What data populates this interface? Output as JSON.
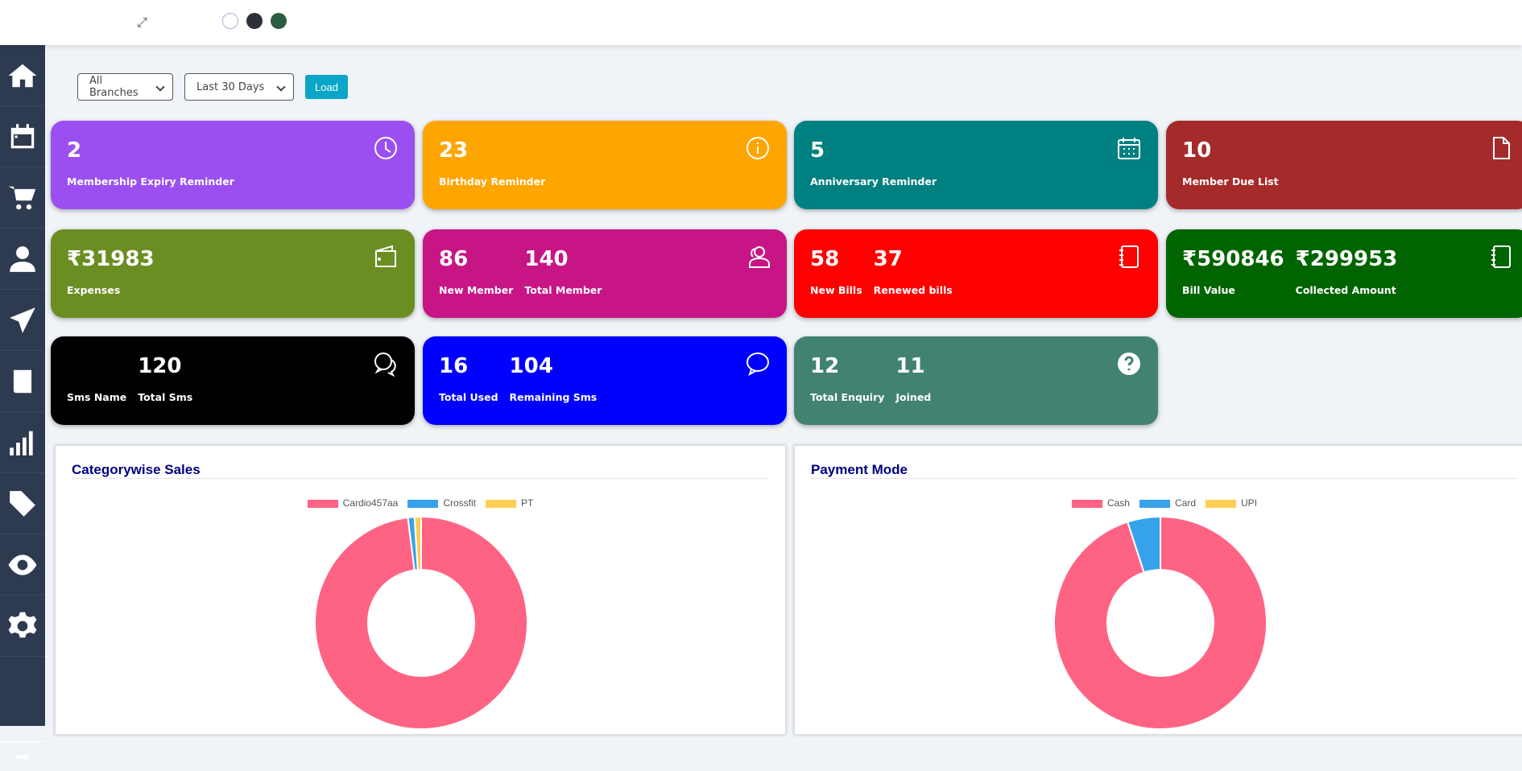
{
  "topbar": {
    "expand_icon": "expand-icon",
    "themes": [
      "#ffffff",
      "#2d3039",
      "#2a5c3f"
    ]
  },
  "sidebar": {
    "items": [
      "home-icon",
      "calendar-icon",
      "cart-icon",
      "user-icon",
      "send-icon",
      "book-icon",
      "bar-chart-icon",
      "tags-icon",
      "eye-icon",
      "gear-icon"
    ],
    "footer_icon": "arrow-right-icon"
  },
  "filters": {
    "branch": "All Branches",
    "period": "Last 30 Days",
    "load": "Load"
  },
  "cards": [
    {
      "color": "#9b4ff0",
      "icon": "clock-icon",
      "items": [
        {
          "value": "2",
          "label": "Membership Expiry Reminder"
        }
      ]
    },
    {
      "color": "#ffa500",
      "icon": "info-icon",
      "items": [
        {
          "value": "23",
          "label": "Birthday Reminder"
        }
      ]
    },
    {
      "color": "#008080",
      "icon": "calendar-icon",
      "items": [
        {
          "value": "5",
          "label": "Anniversary Reminder"
        }
      ]
    },
    {
      "color": "#a52a2a",
      "icon": "file-icon",
      "items": [
        {
          "value": "10",
          "label": "Member Due List"
        }
      ]
    },
    {
      "color": "#6b8e23",
      "icon": "wallet-icon",
      "items": [
        {
          "value": "₹31983",
          "label": "Expenses"
        }
      ]
    },
    {
      "color": "#c71585",
      "icon": "users-icon",
      "items": [
        {
          "value": "86",
          "label": "New Member"
        },
        {
          "value": "140",
          "label": "Total Member"
        }
      ]
    },
    {
      "color": "#ff0000",
      "icon": "notebook-icon",
      "items": [
        {
          "value": "58",
          "label": "New Bills"
        },
        {
          "value": "37",
          "label": "Renewed bills"
        }
      ]
    },
    {
      "color": "#006400",
      "icon": "notebook-icon",
      "items": [
        {
          "value": "₹590846",
          "label": "Bill Value"
        },
        {
          "value": "₹299953",
          "label": "Collected Amount"
        }
      ]
    },
    {
      "color": "#000000",
      "icon": "chat-icon",
      "items": [
        {
          "value": "",
          "label": "Sms Name"
        },
        {
          "value": "120",
          "label": "Total Sms"
        }
      ]
    },
    {
      "color": "#0000ff",
      "icon": "comment-icon",
      "items": [
        {
          "value": "16",
          "label": "Total Used"
        },
        {
          "value": "104",
          "label": "Remaining Sms"
        }
      ]
    },
    {
      "color": "#418270",
      "icon": "question-icon",
      "items": [
        {
          "value": "12",
          "label": "Total Enquiry"
        },
        {
          "value": "11",
          "label": "Joined"
        }
      ]
    }
  ],
  "chart_data": [
    {
      "type": "pie",
      "title": "Categorywise Sales",
      "donut": true,
      "legend": "top",
      "categories": [
        "Cardio457aa",
        "Crossfit",
        "PT"
      ],
      "values": [
        98,
        1,
        1
      ],
      "colors": [
        "#ff6384",
        "#36a2eb",
        "#ffcd56"
      ]
    },
    {
      "type": "pie",
      "title": "Payment Mode",
      "donut": true,
      "legend": "top",
      "categories": [
        "Cash",
        "Card",
        "UPI"
      ],
      "values": [
        95,
        5,
        0
      ],
      "colors": [
        "#ff6384",
        "#36a2eb",
        "#ffcd56"
      ]
    }
  ]
}
